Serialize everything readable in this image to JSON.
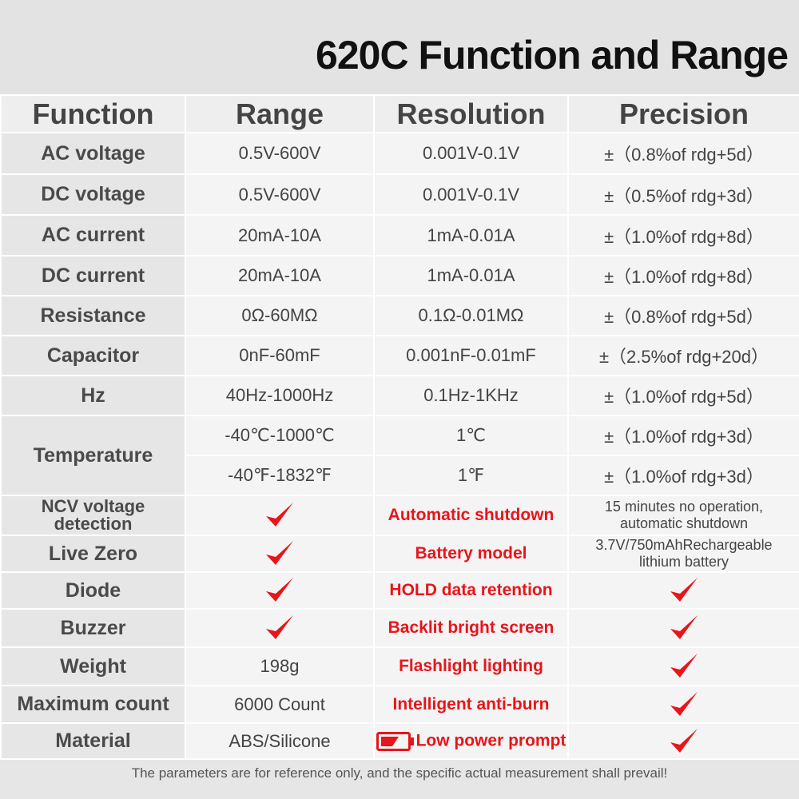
{
  "title": "620C Function and Range",
  "headers": [
    "Function",
    "Range",
    "Resolution",
    "Precision"
  ],
  "rows": [
    {
      "function": "AC voltage",
      "range": "0.5V-600V",
      "resolution": "0.001V-0.1V",
      "precision": "±（0.8%of rdg+5d）"
    },
    {
      "function": "DC voltage",
      "range": "0.5V-600V",
      "resolution": "0.001V-0.1V",
      "precision": "±（0.5%of rdg+3d）"
    },
    {
      "function": "AC current",
      "range": "20mA-10A",
      "resolution": "1mA-0.01A",
      "precision": "±（1.0%of rdg+8d）"
    },
    {
      "function": "DC current",
      "range": "20mA-10A",
      "resolution": "1mA-0.01A",
      "precision": "±（1.0%of rdg+8d）"
    },
    {
      "function": "Resistance",
      "range": "0Ω-60MΩ",
      "resolution": "0.1Ω-0.01MΩ",
      "precision": "±（0.8%of rdg+5d）"
    },
    {
      "function": "Capacitor",
      "range": "0nF-60mF",
      "resolution": "0.001nF-0.01mF",
      "precision": "±（2.5%of rdg+20d）"
    },
    {
      "function": "Hz",
      "range": "40Hz-1000Hz",
      "resolution": "0.1Hz-1KHz",
      "precision": "±（1.0%of rdg+5d）"
    }
  ],
  "temperature": {
    "function": "Temperature",
    "celsius": {
      "range": "-40℃-1000℃",
      "resolution": "1℃",
      "precision": "±（1.0%of rdg+3d）"
    },
    "fahrenheit": {
      "range": "-40℉-1832℉",
      "resolution": "1℉",
      "precision": "±（1.0%of rdg+3d）"
    }
  },
  "features": [
    {
      "function": "NCV voltage detection",
      "function_line1": "NCV voltage",
      "function_line2": "detection",
      "range": "✔",
      "feature": "Automatic shutdown",
      "detail_line1": "15 minutes no operation,",
      "detail_line2": "automatic shutdown"
    },
    {
      "function": "Live Zero",
      "range": "✔",
      "feature": "Battery model",
      "detail_line1": "3.7V/750mAhRechargeable",
      "detail_line2": "lithium battery"
    },
    {
      "function": "Diode",
      "range": "✔",
      "feature": "HOLD data retention",
      "detail": "✔"
    },
    {
      "function": "Buzzer",
      "range": "✔",
      "feature": "Backlit bright screen",
      "detail": "✔"
    },
    {
      "function": "Weight",
      "range": "198g",
      "feature": "Flashlight lighting",
      "detail": "✔"
    },
    {
      "function": "Maximum count",
      "range": "6000 Count",
      "feature": "Intelligent anti-burn",
      "detail": "✔"
    },
    {
      "function": "Material",
      "range": "ABS/Silicone",
      "feature": "Low power prompt",
      "detail": "✔"
    }
  ],
  "footer": "The parameters are for reference only, and the specific actual measurement shall prevail!",
  "colors": {
    "accent_red": "#e8151a",
    "header_text": "#444444",
    "title_text": "#111111"
  },
  "icons": {
    "check": "check-icon",
    "battery": "battery-low-icon"
  }
}
